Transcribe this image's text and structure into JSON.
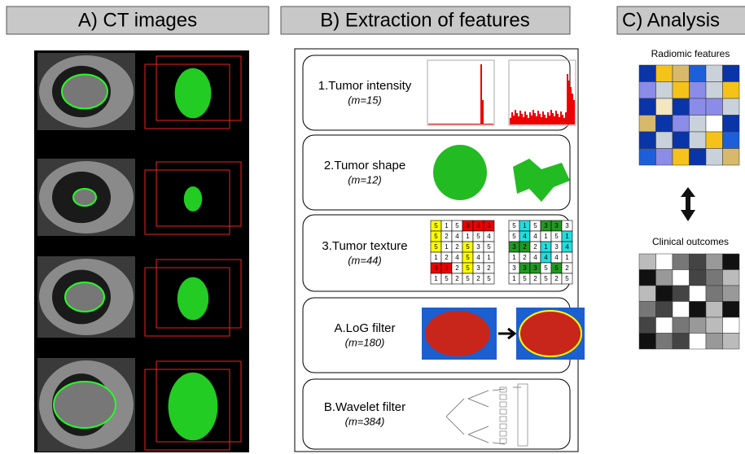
{
  "panel_a": {
    "title": "A) CT images"
  },
  "panel_b": {
    "title": "B) Extraction of features",
    "features": [
      {
        "label": "1.Tumor intensity",
        "count": "(m=15)"
      },
      {
        "label": "2.Tumor shape",
        "count": "(m=12)"
      },
      {
        "label": "3.Tumor texture",
        "count": "(m=44)"
      },
      {
        "label": "A.LoG filter",
        "count": "(m=180)"
      },
      {
        "label": "B.Wavelet filter",
        "count": "(m=384)"
      }
    ],
    "texture_grids": [
      [
        [
          5,
          1,
          5,
          3,
          3,
          3
        ],
        [
          5,
          2,
          4,
          1,
          5,
          4
        ],
        [
          5,
          1,
          2,
          5,
          3,
          5
        ],
        [
          1,
          2,
          4,
          5,
          4,
          1
        ],
        [
          3,
          3,
          2,
          5,
          3,
          2
        ],
        [
          1,
          5,
          2,
          5,
          2,
          5
        ]
      ],
      [
        [
          5,
          1,
          5,
          3,
          3,
          3
        ],
        [
          5,
          4,
          4,
          1,
          5,
          1
        ],
        [
          3,
          2,
          2,
          1,
          3,
          4
        ],
        [
          1,
          2,
          4,
          4,
          4,
          1
        ],
        [
          3,
          3,
          3,
          5,
          5,
          2
        ],
        [
          1,
          5,
          2,
          5,
          2,
          5
        ]
      ]
    ]
  },
  "panel_c": {
    "title": "C) Analysis",
    "radiomic_label": "Radiomic features",
    "clinical_label": "Clinical outcomes"
  }
}
